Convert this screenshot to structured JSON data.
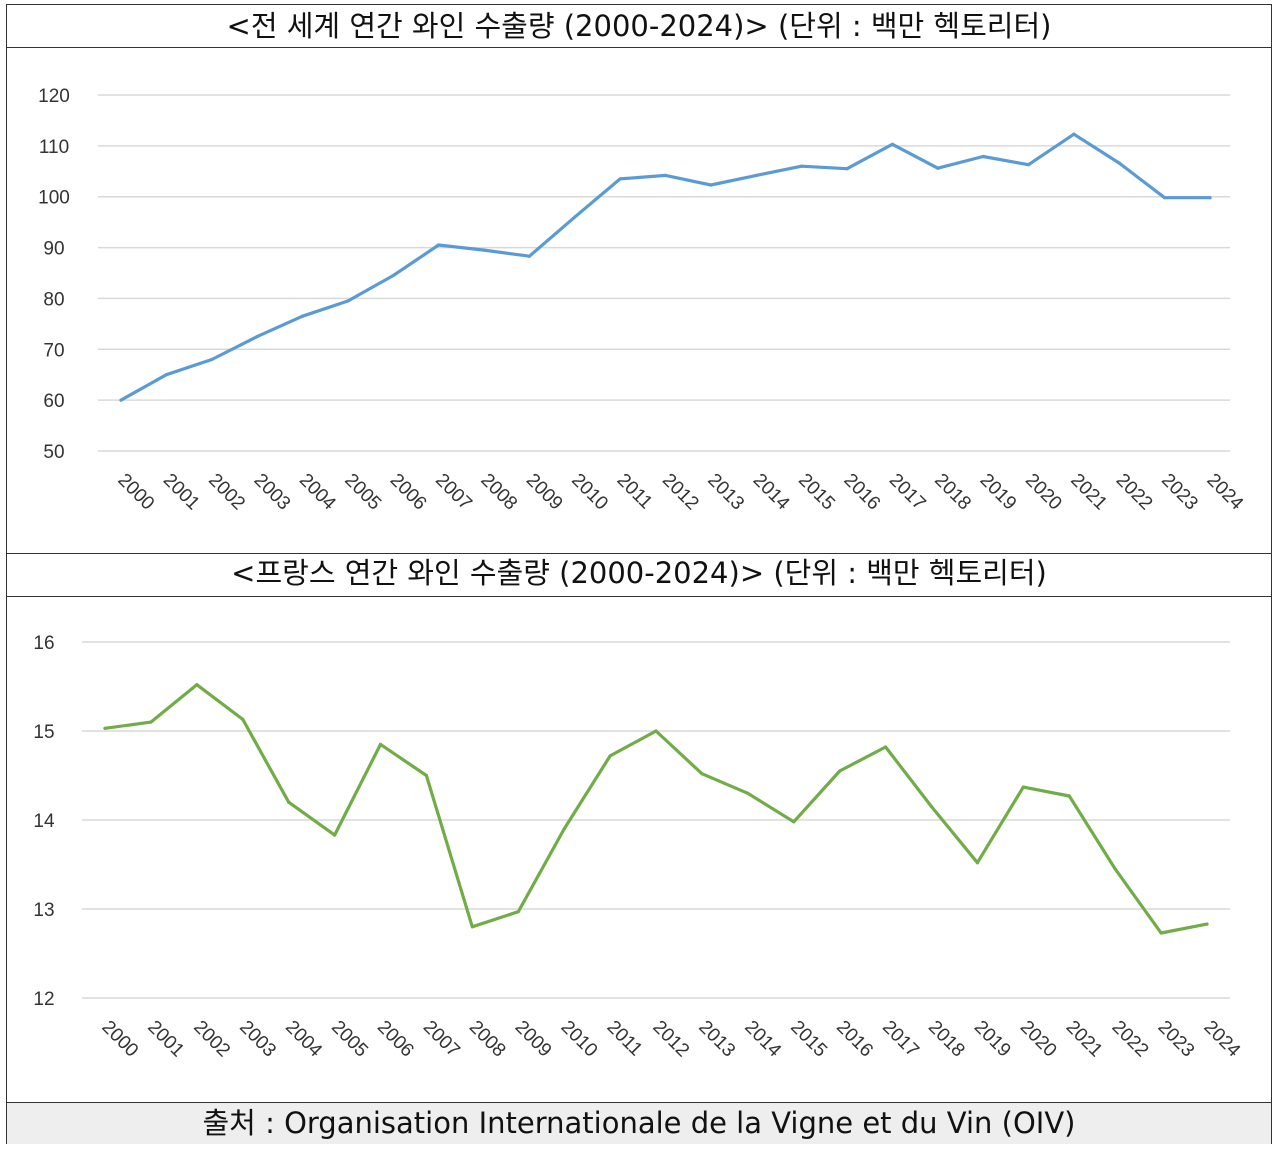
{
  "colors": {
    "world_line": "#5b9bd5",
    "france_line": "#70ad47",
    "grid": "#d9d9d9",
    "source_bg": "#eeeeee"
  },
  "source": "출처 : Organisation Internationale de la Vigne et du Vin (OIV)",
  "chart_data": [
    {
      "type": "line",
      "title": "<전 세계 연간 와인 수출량 (2000-2024)> (단위 : 백만 헥토리터)",
      "categories": [
        "2000",
        "2001",
        "2002",
        "2003",
        "2004",
        "2005",
        "2006",
        "2007",
        "2008",
        "2009",
        "2010",
        "2011",
        "2012",
        "2013",
        "2014",
        "2015",
        "2016",
        "2017",
        "2018",
        "2019",
        "2020",
        "2021",
        "2022",
        "2023",
        "2024"
      ],
      "series": [
        {
          "values": [
            60,
            65,
            68,
            72.5,
            76.5,
            79.5,
            84.5,
            90.5,
            89.5,
            88.3,
            96,
            103.5,
            104.2,
            102.3,
            104.2,
            106,
            105.5,
            110.3,
            105.6,
            107.9,
            106.3,
            112.3,
            106.6,
            99.8,
            99.8
          ]
        }
      ],
      "yticks": [
        "120",
        "110",
        "100",
        "90",
        "80",
        "70",
        "60",
        "50"
      ],
      "ylim": [
        50,
        120
      ],
      "grid": true
    },
    {
      "type": "line",
      "title": "<프랑스 연간 와인 수출량 (2000-2024)> (단위 : 백만 헥토리터)",
      "categories": [
        "2000",
        "2001",
        "2002",
        "2003",
        "2004",
        "2005",
        "2006",
        "2007",
        "2008",
        "2009",
        "2010",
        "2011",
        "2012",
        "2013",
        "2014",
        "2015",
        "2016",
        "2017",
        "2018",
        "2019",
        "2020",
        "2021",
        "2022",
        "2023",
        "2024"
      ],
      "series": [
        {
          "values": [
            15.03,
            15.1,
            15.52,
            15.13,
            14.2,
            13.83,
            14.85,
            14.5,
            12.8,
            12.97,
            13.9,
            14.72,
            15.0,
            14.52,
            14.3,
            13.98,
            14.55,
            14.82,
            14.15,
            13.52,
            14.37,
            14.27,
            13.45,
            12.73,
            12.83
          ]
        }
      ],
      "yticks": [
        "16",
        "15",
        "14",
        "13",
        "12"
      ],
      "ylim": [
        12,
        16
      ],
      "grid": true
    }
  ]
}
